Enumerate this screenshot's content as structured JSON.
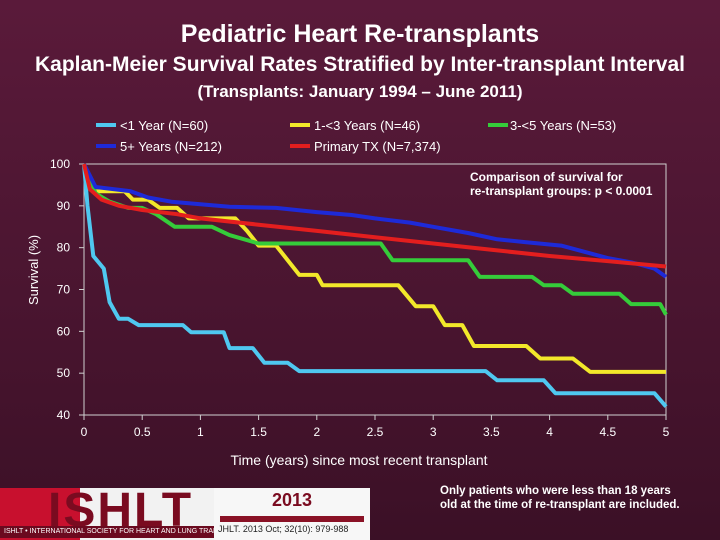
{
  "page": {
    "title": "Pediatric Heart Re-transplants",
    "subtitle_main": "Kaplan-Meier Survival Rates Stratified by Inter-transplant Interval",
    "subtitle_small": "(Transplants: January 1994 – June 2011)"
  },
  "chart_data": {
    "type": "line",
    "xlabel": "Time (years) since most recent transplant",
    "ylabel": "Survival (%)",
    "xlim": [
      0,
      5
    ],
    "ylim": [
      40,
      100
    ],
    "xticks": [
      "0",
      "0.5",
      "1",
      "1.5",
      "2",
      "2.5",
      "3",
      "3.5",
      "4",
      "4.5",
      "5"
    ],
    "yticks": [
      "40",
      "50",
      "60",
      "70",
      "80",
      "90",
      "100"
    ],
    "legend": [
      "<1 Year (N=60)",
      "1-<3 Years (N=46)",
      "3-<5 Years (N=53)",
      "5+ Years (N=212)",
      "Primary TX (N=7,374)"
    ],
    "series": [
      {
        "name": "<1 Year (N=60)",
        "color": "#4fc8f0",
        "points": [
          [
            0,
            100
          ],
          [
            0.03,
            90
          ],
          [
            0.08,
            78
          ],
          [
            0.17,
            75
          ],
          [
            0.22,
            67
          ],
          [
            0.3,
            63
          ],
          [
            0.38,
            63
          ],
          [
            0.47,
            61.5
          ],
          [
            0.85,
            61.5
          ],
          [
            0.92,
            59.8
          ],
          [
            1.2,
            59.8
          ],
          [
            1.25,
            56
          ],
          [
            1.45,
            56
          ],
          [
            1.55,
            52.5
          ],
          [
            1.75,
            52.5
          ],
          [
            1.85,
            50.5
          ],
          [
            3.45,
            50.5
          ],
          [
            3.55,
            48.3
          ],
          [
            3.95,
            48.3
          ],
          [
            4.05,
            45.2
          ],
          [
            4.9,
            45.2
          ],
          [
            5,
            42
          ]
        ]
      },
      {
        "name": "1-<3 Years (N=46)",
        "color": "#f2e82a",
        "points": [
          [
            0,
            100
          ],
          [
            0.08,
            93.5
          ],
          [
            0.35,
            93.5
          ],
          [
            0.42,
            91.5
          ],
          [
            0.55,
            91.5
          ],
          [
            0.65,
            89.5
          ],
          [
            0.8,
            89.5
          ],
          [
            0.9,
            87
          ],
          [
            1.3,
            87
          ],
          [
            1.4,
            84
          ],
          [
            1.5,
            80.5
          ],
          [
            1.65,
            80.5
          ],
          [
            1.75,
            77
          ],
          [
            1.85,
            73.5
          ],
          [
            2,
            73.5
          ],
          [
            2.05,
            71
          ],
          [
            2.7,
            71
          ],
          [
            2.85,
            66
          ],
          [
            3,
            66
          ],
          [
            3.1,
            61.5
          ],
          [
            3.25,
            61.5
          ],
          [
            3.35,
            56.5
          ],
          [
            3.8,
            56.5
          ],
          [
            3.92,
            53.5
          ],
          [
            4.2,
            53.5
          ],
          [
            4.35,
            50.3
          ],
          [
            5,
            50.3
          ]
        ]
      },
      {
        "name": "3-<5 Years (N=53)",
        "color": "#35cc3a",
        "points": [
          [
            0,
            100
          ],
          [
            0.1,
            93
          ],
          [
            0.22,
            91
          ],
          [
            0.38,
            89.5
          ],
          [
            0.5,
            89.5
          ],
          [
            0.62,
            88
          ],
          [
            0.78,
            85
          ],
          [
            1.1,
            85
          ],
          [
            1.25,
            83
          ],
          [
            1.5,
            81
          ],
          [
            2.55,
            81
          ],
          [
            2.65,
            77
          ],
          [
            3.3,
            77
          ],
          [
            3.4,
            73
          ],
          [
            3.85,
            73
          ],
          [
            3.95,
            71
          ],
          [
            4.1,
            71
          ],
          [
            4.2,
            69
          ],
          [
            4.6,
            69
          ],
          [
            4.7,
            66.5
          ],
          [
            4.95,
            66.5
          ],
          [
            5,
            64
          ]
        ]
      },
      {
        "name": "5+ Years (N=212)",
        "color": "#1e2ad8",
        "points": [
          [
            0,
            100
          ],
          [
            0.1,
            94.5
          ],
          [
            0.4,
            93.5
          ],
          [
            0.55,
            92
          ],
          [
            0.75,
            91
          ],
          [
            0.95,
            90.5
          ],
          [
            1.25,
            89.8
          ],
          [
            1.65,
            89.5
          ],
          [
            2,
            88.5
          ],
          [
            2.3,
            87.8
          ],
          [
            2.5,
            87
          ],
          [
            2.8,
            86
          ],
          [
            3,
            85
          ],
          [
            3.3,
            83.5
          ],
          [
            3.55,
            82
          ],
          [
            3.8,
            81.3
          ],
          [
            4.1,
            80.5
          ],
          [
            4.3,
            79
          ],
          [
            4.5,
            77.5
          ],
          [
            4.7,
            76.5
          ],
          [
            4.9,
            75
          ],
          [
            5,
            73
          ]
        ]
      },
      {
        "name": "Primary TX (N=7,374)",
        "color": "#e31e1e",
        "points": [
          [
            0,
            100
          ],
          [
            0.05,
            94
          ],
          [
            0.15,
            91.5
          ],
          [
            0.3,
            90
          ],
          [
            0.5,
            89
          ],
          [
            0.8,
            88
          ],
          [
            1,
            87
          ],
          [
            1.5,
            85.5
          ],
          [
            2,
            84
          ],
          [
            2.5,
            82.5
          ],
          [
            3,
            81
          ],
          [
            3.5,
            79.5
          ],
          [
            4,
            78
          ],
          [
            4.5,
            76.8
          ],
          [
            5,
            75.5
          ]
        ]
      }
    ]
  },
  "annotations": {
    "comparison_line1": "Comparison of survival for",
    "comparison_line2": "re-transplant groups: p < 0.0001",
    "restriction_line1": "Only patients who were less than 18 years",
    "restriction_line2": "old at the time of re-transplant are included."
  },
  "footer": {
    "logo_text": "ISHLT",
    "logo_band": "ISHLT • INTERNATIONAL SOCIETY FOR HEART AND LUNG TRANSPLANTATION",
    "year": "2013",
    "citation": "JHLT. 2013 Oct; 32(10): 979-988"
  }
}
